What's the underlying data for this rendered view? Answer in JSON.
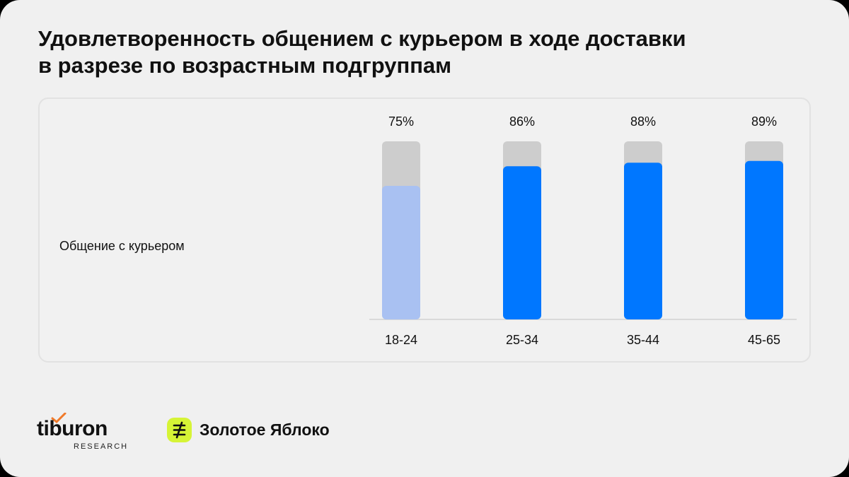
{
  "title": {
    "line1": "Удовлетворенность общением с курьером в ходе доставки",
    "line2": "в разрезе по возрастным подгруппам"
  },
  "chart_data": {
    "type": "bar",
    "row_label": "Общение с курьером",
    "categories": [
      "18-24",
      "25-34",
      "35-44",
      "45-65"
    ],
    "values": [
      75,
      86,
      88,
      89
    ],
    "value_labels": [
      "75%",
      "86%",
      "88%",
      "89%"
    ],
    "ylim": [
      0,
      100
    ],
    "unit": "%",
    "background_color": "#cdcdcd",
    "bar_colors": [
      "#a9c1f2",
      "#0077ff",
      "#0077ff",
      "#0077ff"
    ],
    "grid": false,
    "legend": "none"
  },
  "logos": {
    "tiburon": {
      "name": "tiburon",
      "sub": "RESEARCH",
      "accent": "#2d6ff2",
      "tick_color": "#f07a2a"
    },
    "partner": {
      "name": "Золотое Яблоко",
      "icon": "golden-apple-logo-icon",
      "color": "#d6f436"
    }
  }
}
